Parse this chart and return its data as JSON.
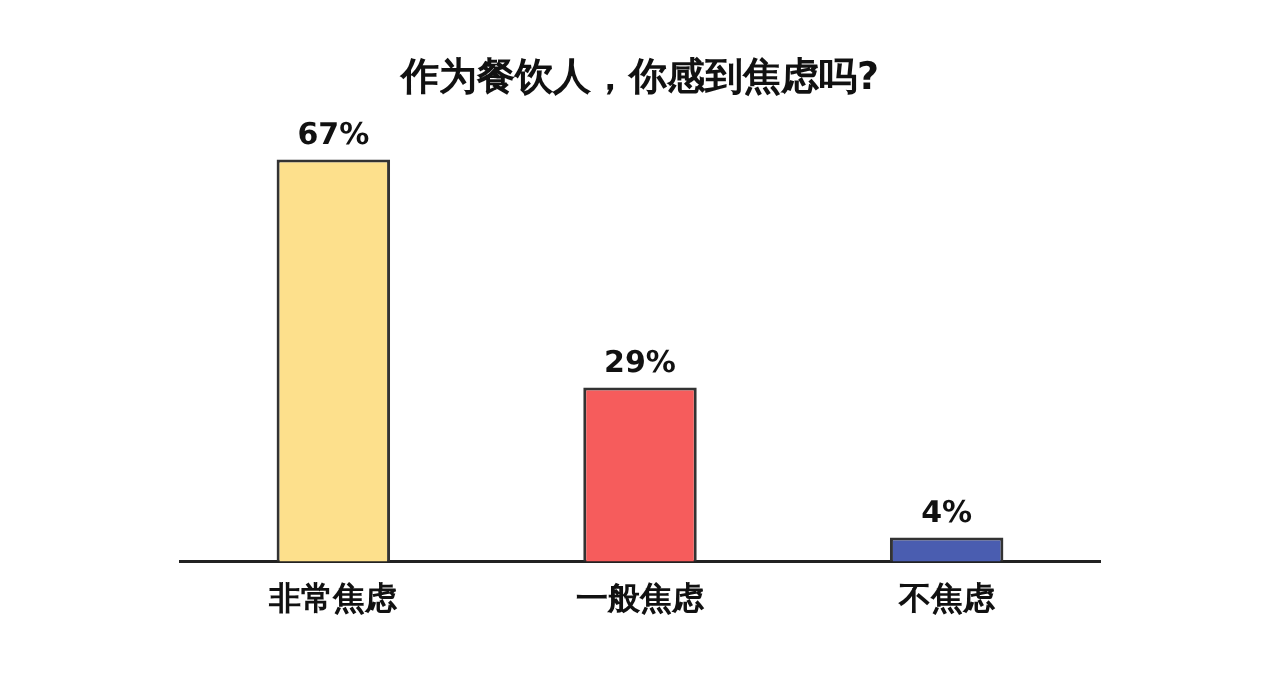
{
  "chart_data": {
    "type": "bar",
    "title": "作为餐饮人，你感到焦虑吗?",
    "categories": [
      "非常焦虑",
      "一般焦虑",
      "不焦虑"
    ],
    "values": [
      67,
      29,
      4
    ],
    "colors": [
      "#fde08c",
      "#f65c5c",
      "#4a5db0"
    ],
    "value_labels": [
      "67%",
      "29%",
      "4%"
    ],
    "grid": false,
    "legend": false
  }
}
